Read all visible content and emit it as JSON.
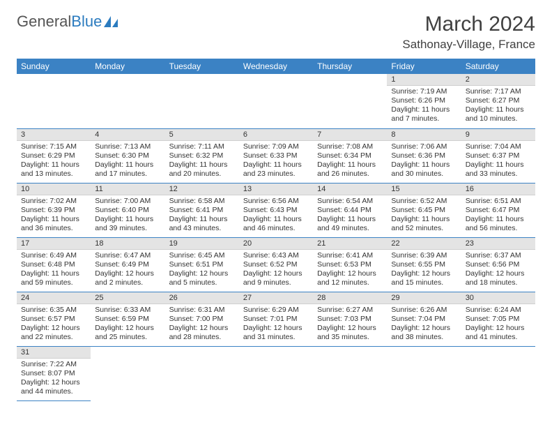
{
  "brand": {
    "part1": "General",
    "part2": "Blue"
  },
  "title": "March 2024",
  "location": "Sathonay-Village, France",
  "colors": {
    "header_bg": "#3b82c4",
    "header_text": "#ffffff",
    "daynum_bg": "#e4e4e4",
    "row_border": "#3b82c4",
    "brand_blue": "#2b7bbf"
  },
  "weekdays": [
    "Sunday",
    "Monday",
    "Tuesday",
    "Wednesday",
    "Thursday",
    "Friday",
    "Saturday"
  ],
  "weeks": [
    [
      null,
      null,
      null,
      null,
      null,
      {
        "n": "1",
        "sr": "Sunrise: 7:19 AM",
        "ss": "Sunset: 6:26 PM",
        "dl": "Daylight: 11 hours and 7 minutes."
      },
      {
        "n": "2",
        "sr": "Sunrise: 7:17 AM",
        "ss": "Sunset: 6:27 PM",
        "dl": "Daylight: 11 hours and 10 minutes."
      }
    ],
    [
      {
        "n": "3",
        "sr": "Sunrise: 7:15 AM",
        "ss": "Sunset: 6:29 PM",
        "dl": "Daylight: 11 hours and 13 minutes."
      },
      {
        "n": "4",
        "sr": "Sunrise: 7:13 AM",
        "ss": "Sunset: 6:30 PM",
        "dl": "Daylight: 11 hours and 17 minutes."
      },
      {
        "n": "5",
        "sr": "Sunrise: 7:11 AM",
        "ss": "Sunset: 6:32 PM",
        "dl": "Daylight: 11 hours and 20 minutes."
      },
      {
        "n": "6",
        "sr": "Sunrise: 7:09 AM",
        "ss": "Sunset: 6:33 PM",
        "dl": "Daylight: 11 hours and 23 minutes."
      },
      {
        "n": "7",
        "sr": "Sunrise: 7:08 AM",
        "ss": "Sunset: 6:34 PM",
        "dl": "Daylight: 11 hours and 26 minutes."
      },
      {
        "n": "8",
        "sr": "Sunrise: 7:06 AM",
        "ss": "Sunset: 6:36 PM",
        "dl": "Daylight: 11 hours and 30 minutes."
      },
      {
        "n": "9",
        "sr": "Sunrise: 7:04 AM",
        "ss": "Sunset: 6:37 PM",
        "dl": "Daylight: 11 hours and 33 minutes."
      }
    ],
    [
      {
        "n": "10",
        "sr": "Sunrise: 7:02 AM",
        "ss": "Sunset: 6:39 PM",
        "dl": "Daylight: 11 hours and 36 minutes."
      },
      {
        "n": "11",
        "sr": "Sunrise: 7:00 AM",
        "ss": "Sunset: 6:40 PM",
        "dl": "Daylight: 11 hours and 39 minutes."
      },
      {
        "n": "12",
        "sr": "Sunrise: 6:58 AM",
        "ss": "Sunset: 6:41 PM",
        "dl": "Daylight: 11 hours and 43 minutes."
      },
      {
        "n": "13",
        "sr": "Sunrise: 6:56 AM",
        "ss": "Sunset: 6:43 PM",
        "dl": "Daylight: 11 hours and 46 minutes."
      },
      {
        "n": "14",
        "sr": "Sunrise: 6:54 AM",
        "ss": "Sunset: 6:44 PM",
        "dl": "Daylight: 11 hours and 49 minutes."
      },
      {
        "n": "15",
        "sr": "Sunrise: 6:52 AM",
        "ss": "Sunset: 6:45 PM",
        "dl": "Daylight: 11 hours and 52 minutes."
      },
      {
        "n": "16",
        "sr": "Sunrise: 6:51 AM",
        "ss": "Sunset: 6:47 PM",
        "dl": "Daylight: 11 hours and 56 minutes."
      }
    ],
    [
      {
        "n": "17",
        "sr": "Sunrise: 6:49 AM",
        "ss": "Sunset: 6:48 PM",
        "dl": "Daylight: 11 hours and 59 minutes."
      },
      {
        "n": "18",
        "sr": "Sunrise: 6:47 AM",
        "ss": "Sunset: 6:49 PM",
        "dl": "Daylight: 12 hours and 2 minutes."
      },
      {
        "n": "19",
        "sr": "Sunrise: 6:45 AM",
        "ss": "Sunset: 6:51 PM",
        "dl": "Daylight: 12 hours and 5 minutes."
      },
      {
        "n": "20",
        "sr": "Sunrise: 6:43 AM",
        "ss": "Sunset: 6:52 PM",
        "dl": "Daylight: 12 hours and 9 minutes."
      },
      {
        "n": "21",
        "sr": "Sunrise: 6:41 AM",
        "ss": "Sunset: 6:53 PM",
        "dl": "Daylight: 12 hours and 12 minutes."
      },
      {
        "n": "22",
        "sr": "Sunrise: 6:39 AM",
        "ss": "Sunset: 6:55 PM",
        "dl": "Daylight: 12 hours and 15 minutes."
      },
      {
        "n": "23",
        "sr": "Sunrise: 6:37 AM",
        "ss": "Sunset: 6:56 PM",
        "dl": "Daylight: 12 hours and 18 minutes."
      }
    ],
    [
      {
        "n": "24",
        "sr": "Sunrise: 6:35 AM",
        "ss": "Sunset: 6:57 PM",
        "dl": "Daylight: 12 hours and 22 minutes."
      },
      {
        "n": "25",
        "sr": "Sunrise: 6:33 AM",
        "ss": "Sunset: 6:59 PM",
        "dl": "Daylight: 12 hours and 25 minutes."
      },
      {
        "n": "26",
        "sr": "Sunrise: 6:31 AM",
        "ss": "Sunset: 7:00 PM",
        "dl": "Daylight: 12 hours and 28 minutes."
      },
      {
        "n": "27",
        "sr": "Sunrise: 6:29 AM",
        "ss": "Sunset: 7:01 PM",
        "dl": "Daylight: 12 hours and 31 minutes."
      },
      {
        "n": "28",
        "sr": "Sunrise: 6:27 AM",
        "ss": "Sunset: 7:03 PM",
        "dl": "Daylight: 12 hours and 35 minutes."
      },
      {
        "n": "29",
        "sr": "Sunrise: 6:26 AM",
        "ss": "Sunset: 7:04 PM",
        "dl": "Daylight: 12 hours and 38 minutes."
      },
      {
        "n": "30",
        "sr": "Sunrise: 6:24 AM",
        "ss": "Sunset: 7:05 PM",
        "dl": "Daylight: 12 hours and 41 minutes."
      }
    ],
    [
      {
        "n": "31",
        "sr": "Sunrise: 7:22 AM",
        "ss": "Sunset: 8:07 PM",
        "dl": "Daylight: 12 hours and 44 minutes."
      },
      null,
      null,
      null,
      null,
      null,
      null
    ]
  ]
}
